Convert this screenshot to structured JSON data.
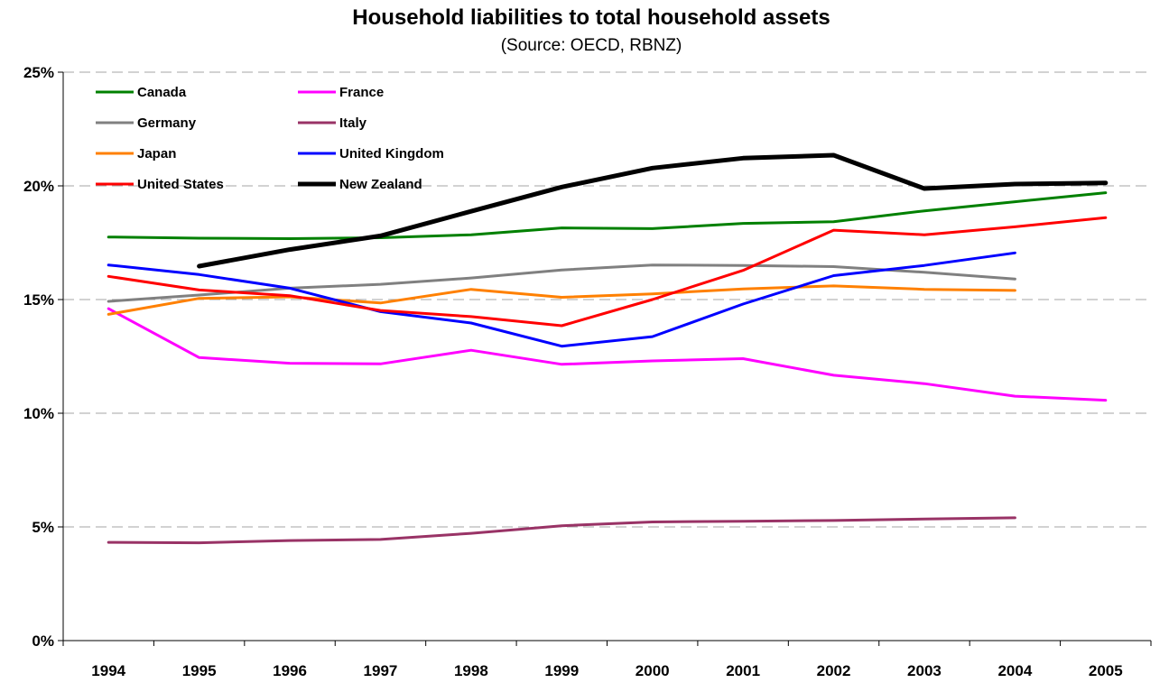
{
  "chart_data": {
    "type": "line",
    "title": "Household liabilities to total household assets",
    "subtitle": "(Source: OECD, RBNZ)",
    "xlabel": "",
    "ylabel": "",
    "x": [
      "1994",
      "1995",
      "1996",
      "1997",
      "1998",
      "1999",
      "2000",
      "2001",
      "2002",
      "2003",
      "2004",
      "2005"
    ],
    "ylim": [
      0,
      25
    ],
    "yticks": [
      0,
      5,
      10,
      15,
      20,
      25
    ],
    "ytick_labels": [
      "0%",
      "5%",
      "10%",
      "15%",
      "20%",
      "25%"
    ],
    "grid": "horizontal dashed",
    "legend_position": "top-left inside plot",
    "series": [
      {
        "name": "Canada",
        "color": "#008000",
        "width": 3,
        "values": [
          17.75,
          17.7,
          17.68,
          17.72,
          17.85,
          18.15,
          18.12,
          18.35,
          18.42,
          18.9,
          19.3,
          19.7
        ]
      },
      {
        "name": "France",
        "color": "#FF00FF",
        "width": 3,
        "values": [
          14.6,
          12.45,
          12.2,
          12.17,
          12.77,
          12.15,
          12.3,
          12.4,
          11.67,
          11.3,
          10.75,
          10.57
        ]
      },
      {
        "name": "Germany",
        "color": "#808080",
        "width": 3,
        "values": [
          14.92,
          15.2,
          15.5,
          15.67,
          15.95,
          16.3,
          16.52,
          16.5,
          16.45,
          16.2,
          15.9,
          null
        ]
      },
      {
        "name": "Italy",
        "color": "#993366",
        "width": 3,
        "values": [
          4.32,
          4.3,
          4.4,
          4.45,
          4.72,
          5.05,
          5.22,
          5.25,
          5.28,
          5.35,
          5.4,
          null
        ]
      },
      {
        "name": "Japan",
        "color": "#FF8000",
        "width": 3,
        "values": [
          14.35,
          15.05,
          15.12,
          14.85,
          15.45,
          15.1,
          15.25,
          15.47,
          15.6,
          15.45,
          15.4,
          null
        ]
      },
      {
        "name": "United Kingdom",
        "color": "#0000FF",
        "width": 3,
        "values": [
          16.52,
          16.1,
          15.5,
          14.47,
          13.97,
          12.95,
          13.37,
          14.8,
          16.05,
          16.5,
          17.05,
          null
        ]
      },
      {
        "name": "United States",
        "color": "#FF0000",
        "width": 3,
        "values": [
          16.02,
          15.42,
          15.17,
          14.52,
          14.25,
          13.85,
          15.0,
          16.28,
          18.05,
          17.85,
          18.2,
          18.6
        ]
      },
      {
        "name": "New Zealand",
        "color": "#000000",
        "width": 5,
        "values": [
          null,
          16.47,
          17.2,
          17.8,
          18.88,
          19.95,
          20.78,
          21.22,
          21.35,
          19.88,
          20.08,
          20.13
        ]
      }
    ]
  }
}
